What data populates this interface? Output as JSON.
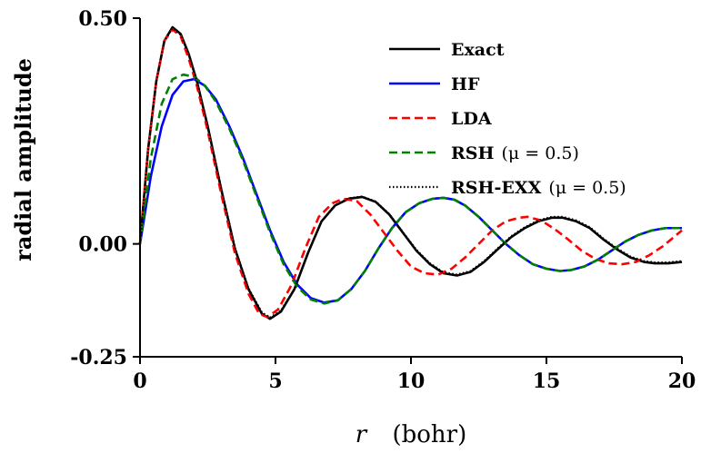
{
  "chart_data": {
    "type": "line",
    "xlabel": {
      "symbol": "r",
      "unit": "(bohr)"
    },
    "ylabel": "radial amplitude",
    "xlim": [
      0,
      20
    ],
    "ylim": [
      -0.25,
      0.5
    ],
    "xticks": [
      0,
      5,
      10,
      15,
      20
    ],
    "xtick_labels": [
      "0",
      "5",
      "10",
      "15",
      "20"
    ],
    "yticks": [
      -0.25,
      0.0,
      0.5
    ],
    "ytick_labels": [
      "-0.25",
      "0.00",
      "0.50"
    ],
    "grid": false,
    "legend_position": "top-right",
    "series": [
      {
        "name": "Exact",
        "extra": "",
        "color": "#000000",
        "style": "solid",
        "x": [
          0,
          0.3,
          0.6,
          0.9,
          1.2,
          1.5,
          1.8,
          2.1,
          2.5,
          3.0,
          3.5,
          4.0,
          4.5,
          4.8,
          5.2,
          5.7,
          6.2,
          6.7,
          7.2,
          7.7,
          8.2,
          8.7,
          9.2,
          9.7,
          10.2,
          10.7,
          11.2,
          11.7,
          12.2,
          12.7,
          13.2,
          13.7,
          14.2,
          14.7,
          15.2,
          15.6,
          16.1,
          16.6,
          17.1,
          17.6,
          18.1,
          18.6,
          19.0,
          19.5,
          20.0
        ],
        "y": [
          0.0,
          0.21,
          0.36,
          0.45,
          0.48,
          0.465,
          0.42,
          0.36,
          0.26,
          0.12,
          -0.01,
          -0.1,
          -0.155,
          -0.166,
          -0.15,
          -0.1,
          -0.02,
          0.05,
          0.085,
          0.1,
          0.104,
          0.093,
          0.065,
          0.025,
          -0.015,
          -0.045,
          -0.065,
          -0.07,
          -0.062,
          -0.04,
          -0.012,
          0.015,
          0.035,
          0.05,
          0.058,
          0.058,
          0.05,
          0.035,
          0.01,
          -0.012,
          -0.03,
          -0.04,
          -0.043,
          -0.043,
          -0.04
        ]
      },
      {
        "name": "HF",
        "extra": "",
        "color": "#0000ff",
        "style": "solid",
        "x": [
          0,
          0.4,
          0.8,
          1.2,
          1.6,
          2.0,
          2.4,
          2.8,
          3.3,
          3.8,
          4.3,
          4.8,
          5.3,
          5.8,
          6.3,
          6.8,
          7.3,
          7.8,
          8.3,
          8.8,
          9.3,
          9.8,
          10.3,
          10.8,
          11.2,
          11.6,
          12.0,
          12.5,
          13.0,
          13.5,
          14.0,
          14.5,
          15.0,
          15.5,
          15.9,
          16.4,
          16.9,
          17.4,
          17.9,
          18.4,
          18.9,
          19.4,
          20.0
        ],
        "y": [
          0.0,
          0.15,
          0.26,
          0.33,
          0.36,
          0.365,
          0.35,
          0.32,
          0.26,
          0.19,
          0.11,
          0.03,
          -0.04,
          -0.09,
          -0.12,
          -0.13,
          -0.125,
          -0.1,
          -0.06,
          -0.01,
          0.035,
          0.07,
          0.09,
          0.1,
          0.102,
          0.098,
          0.085,
          0.06,
          0.03,
          0.0,
          -0.025,
          -0.045,
          -0.055,
          -0.06,
          -0.058,
          -0.05,
          -0.035,
          -0.015,
          0.005,
          0.02,
          0.03,
          0.035,
          0.035
        ]
      },
      {
        "name": "LDA",
        "extra": "",
        "color": "#ff0000",
        "style": "dashed",
        "x": [
          0,
          0.3,
          0.6,
          0.9,
          1.2,
          1.5,
          1.8,
          2.1,
          2.5,
          3.0,
          3.5,
          4.0,
          4.4,
          4.7,
          5.1,
          5.6,
          6.1,
          6.6,
          7.1,
          7.5,
          8.0,
          8.5,
          9.0,
          9.5,
          10.0,
          10.5,
          11.0,
          11.5,
          12.0,
          12.5,
          13.0,
          13.5,
          14.0,
          14.3,
          14.8,
          15.3,
          15.8,
          16.3,
          16.8,
          17.3,
          17.8,
          18.3,
          18.8,
          19.3,
          20.0
        ],
        "y": [
          0.0,
          0.21,
          0.36,
          0.45,
          0.475,
          0.46,
          0.41,
          0.35,
          0.25,
          0.11,
          -0.02,
          -0.11,
          -0.155,
          -0.162,
          -0.145,
          -0.09,
          -0.01,
          0.06,
          0.09,
          0.1,
          0.095,
          0.065,
          0.025,
          -0.015,
          -0.05,
          -0.065,
          -0.068,
          -0.055,
          -0.03,
          -0.0,
          0.03,
          0.05,
          0.058,
          0.06,
          0.052,
          0.033,
          0.01,
          -0.015,
          -0.033,
          -0.043,
          -0.045,
          -0.04,
          -0.025,
          -0.005,
          0.03
        ]
      },
      {
        "name": "RSH",
        "extra": "(μ = 0.5)",
        "color": "#008000",
        "style": "dashed",
        "x": [
          0,
          0.4,
          0.8,
          1.2,
          1.6,
          2.0,
          2.4,
          2.8,
          3.3,
          3.8,
          4.3,
          4.8,
          5.3,
          5.8,
          6.3,
          6.8,
          7.3,
          7.8,
          8.3,
          8.8,
          9.3,
          9.8,
          10.3,
          10.8,
          11.2,
          11.6,
          12.0,
          12.5,
          13.0,
          13.5,
          14.0,
          14.5,
          15.0,
          15.5,
          15.9,
          16.4,
          16.9,
          17.4,
          17.9,
          18.4,
          18.9,
          19.4,
          20.0
        ],
        "y": [
          0.0,
          0.19,
          0.31,
          0.365,
          0.375,
          0.37,
          0.35,
          0.315,
          0.255,
          0.185,
          0.105,
          0.025,
          -0.045,
          -0.095,
          -0.123,
          -0.132,
          -0.125,
          -0.1,
          -0.06,
          -0.01,
          0.035,
          0.07,
          0.09,
          0.1,
          0.102,
          0.098,
          0.085,
          0.06,
          0.03,
          0.0,
          -0.025,
          -0.045,
          -0.055,
          -0.06,
          -0.058,
          -0.05,
          -0.035,
          -0.015,
          0.005,
          0.02,
          0.03,
          0.035,
          0.035
        ]
      },
      {
        "name": "RSH-EXX",
        "extra": "(μ = 0.5)",
        "color": "#000000",
        "style": "dotted",
        "x": [
          0,
          0.3,
          0.6,
          0.9,
          1.2,
          1.5,
          1.8,
          2.1,
          2.5,
          3.0,
          3.5,
          4.0,
          4.5,
          4.8,
          5.2,
          5.7,
          6.2,
          6.7,
          7.2,
          7.7,
          8.2,
          8.7,
          9.2,
          9.7,
          10.2,
          10.7,
          11.2,
          11.7,
          12.2,
          12.7,
          13.2,
          13.7,
          14.2,
          14.7,
          15.2,
          15.6,
          16.1,
          16.6,
          17.1,
          17.6,
          18.1,
          18.6,
          19.0,
          19.5,
          20.0
        ],
        "y": [
          0.0,
          0.21,
          0.36,
          0.45,
          0.478,
          0.463,
          0.42,
          0.36,
          0.26,
          0.122,
          -0.008,
          -0.098,
          -0.152,
          -0.163,
          -0.148,
          -0.1,
          -0.02,
          0.05,
          0.086,
          0.101,
          0.105,
          0.094,
          0.066,
          0.026,
          -0.013,
          -0.043,
          -0.063,
          -0.068,
          -0.06,
          -0.038,
          -0.01,
          0.017,
          0.037,
          0.052,
          0.06,
          0.06,
          0.052,
          0.037,
          0.012,
          -0.01,
          -0.028,
          -0.038,
          -0.041,
          -0.041,
          -0.038
        ]
      }
    ]
  }
}
